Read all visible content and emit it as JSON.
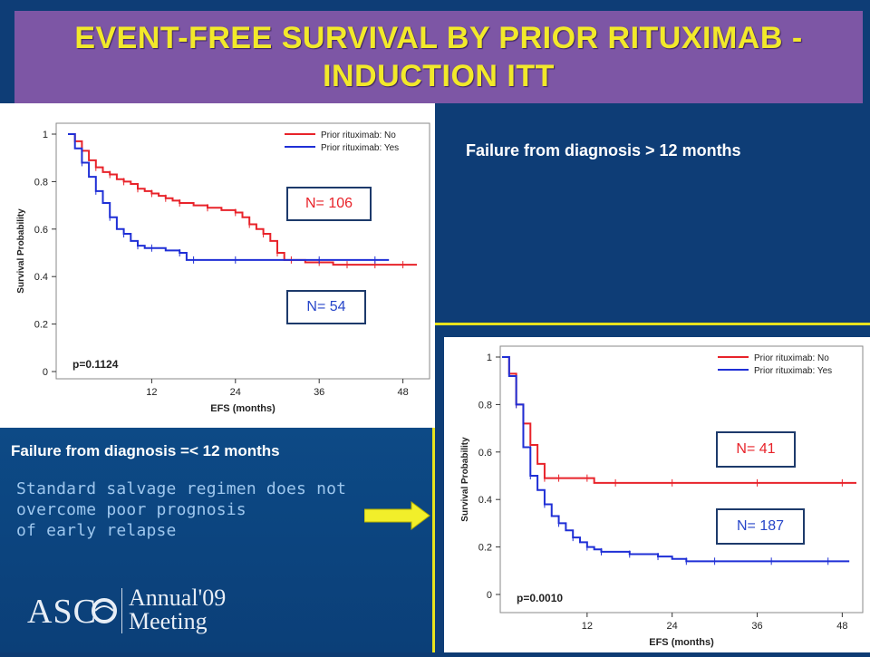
{
  "slide": {
    "title": "EVENT-FREE SURVIVAL BY PRIOR RITUXIMAB -\nINDUCTION ITT",
    "subtitle_late": "Failure from diagnosis > 12 months",
    "subtitle_early": "Failure from diagnosis =< 12 months",
    "note": "Standard salvage regimen does not\novercome poor prognosis\nof early relapse",
    "logo_text": "ASC",
    "logo_annual": "Annual",
    "logo_year": "'09",
    "logo_meeting": "Meeting",
    "colors": {
      "title_bar": "#7d56a5",
      "title_text": "#f2e92a",
      "background": "#0e3d76",
      "arrow": "#f2ef2a",
      "red": "#e8232a",
      "blue": "#1f2fd6"
    }
  },
  "chart_data": [
    {
      "type": "line",
      "title": "",
      "xlabel": "EFS (months)",
      "ylabel": "Survival Probability",
      "xlim": [
        0,
        50
      ],
      "ylim": [
        0,
        1
      ],
      "xticks": [
        "12",
        "24",
        "36",
        "48"
      ],
      "yticks": [
        "0",
        "0.2",
        "0.4",
        "0.6",
        "0.8",
        "1"
      ],
      "legend": {
        "position": "top-right"
      },
      "pvalue": "p=0.1124",
      "annotations": {
        "n_no": "N= 106",
        "n_yes": "N= 54"
      },
      "series": [
        {
          "name": "Prior rituximab: No",
          "color": "#e8232a",
          "x": [
            0,
            1,
            2,
            3,
            4,
            5,
            6,
            7,
            8,
            9,
            10,
            11,
            12,
            13,
            14,
            15,
            16,
            18,
            20,
            22,
            24,
            25,
            26,
            27,
            28,
            29,
            30,
            31,
            32,
            34,
            36,
            38,
            40,
            42,
            44,
            46,
            48,
            50
          ],
          "y": [
            1,
            0.97,
            0.93,
            0.89,
            0.86,
            0.84,
            0.83,
            0.81,
            0.8,
            0.79,
            0.77,
            0.76,
            0.75,
            0.74,
            0.73,
            0.72,
            0.71,
            0.7,
            0.69,
            0.68,
            0.67,
            0.65,
            0.62,
            0.6,
            0.58,
            0.55,
            0.5,
            0.47,
            0.47,
            0.46,
            0.46,
            0.45,
            0.45,
            0.45,
            0.45,
            0.45,
            0.45,
            0.45
          ]
        },
        {
          "name": "Prior rituximab: Yes",
          "color": "#1f2fd6",
          "x": [
            0,
            1,
            2,
            3,
            4,
            5,
            6,
            7,
            8,
            9,
            10,
            11,
            12,
            14,
            16,
            17,
            18,
            20,
            24,
            30,
            36,
            40,
            44,
            46
          ],
          "y": [
            1,
            0.94,
            0.88,
            0.82,
            0.76,
            0.71,
            0.65,
            0.6,
            0.58,
            0.55,
            0.53,
            0.52,
            0.52,
            0.51,
            0.5,
            0.47,
            0.47,
            0.47,
            0.47,
            0.47,
            0.47,
            0.47,
            0.47,
            0.47
          ]
        }
      ]
    },
    {
      "type": "line",
      "title": "",
      "xlabel": "EFS (months)",
      "ylabel": "Survival Probability",
      "xlim": [
        0,
        50
      ],
      "ylim": [
        0,
        1
      ],
      "xticks": [
        "12",
        "24",
        "36",
        "48"
      ],
      "yticks": [
        "0",
        "0.2",
        "0.4",
        "0.6",
        "0.8",
        "1"
      ],
      "legend": {
        "position": "top-right"
      },
      "pvalue": "p=0.0010",
      "annotations": {
        "n_no": "N= 41",
        "n_yes": "N= 187"
      },
      "series": [
        {
          "name": "Prior rituximab: No",
          "color": "#e8232a",
          "x": [
            0,
            1,
            2,
            3,
            4,
            5,
            6,
            7,
            8,
            10,
            12,
            13,
            16,
            20,
            24,
            30,
            36,
            42,
            48,
            50
          ],
          "y": [
            1,
            0.93,
            0.8,
            0.72,
            0.63,
            0.55,
            0.49,
            0.49,
            0.49,
            0.49,
            0.49,
            0.47,
            0.47,
            0.47,
            0.47,
            0.47,
            0.47,
            0.47,
            0.47,
            0.47
          ]
        },
        {
          "name": "Prior rituximab: Yes",
          "color": "#1f2fd6",
          "x": [
            0,
            1,
            2,
            3,
            4,
            5,
            6,
            7,
            8,
            9,
            10,
            11,
            12,
            13,
            14,
            16,
            18,
            20,
            22,
            24,
            26,
            28,
            30,
            34,
            38,
            42,
            46,
            49
          ],
          "y": [
            1,
            0.92,
            0.8,
            0.62,
            0.5,
            0.44,
            0.38,
            0.33,
            0.3,
            0.27,
            0.24,
            0.22,
            0.2,
            0.19,
            0.18,
            0.18,
            0.17,
            0.17,
            0.16,
            0.15,
            0.14,
            0.14,
            0.14,
            0.14,
            0.14,
            0.14,
            0.14,
            0.14
          ]
        }
      ]
    }
  ]
}
